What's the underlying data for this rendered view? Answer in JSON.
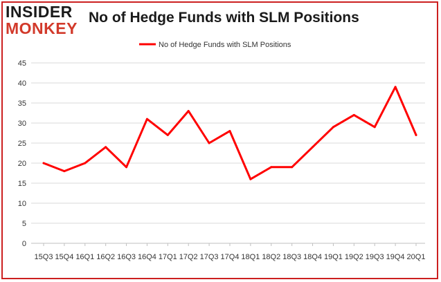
{
  "logo": {
    "line1": "INSIDER",
    "line2": "MONKEY"
  },
  "chart_data": {
    "type": "line",
    "title": "No of Hedge Funds with SLM Positions",
    "xlabel": "",
    "ylabel": "",
    "ylim": [
      0,
      45
    ],
    "yticks": [
      0,
      5,
      10,
      15,
      20,
      25,
      30,
      35,
      40,
      45
    ],
    "grid": true,
    "legend_position": "top",
    "categories": [
      "15Q3",
      "15Q4",
      "16Q1",
      "16Q2",
      "16Q3",
      "16Q4",
      "17Q1",
      "17Q2",
      "17Q3",
      "17Q4",
      "18Q1",
      "18Q2",
      "18Q3",
      "18Q4",
      "19Q1",
      "19Q2",
      "19Q3",
      "19Q4",
      "20Q1"
    ],
    "series": [
      {
        "name": "No of Hedge Funds with SLM Positions",
        "color": "#ff0000",
        "values": [
          20,
          18,
          20,
          24,
          19,
          31,
          27,
          33,
          25,
          28,
          16,
          19,
          19,
          24,
          29,
          32,
          29,
          39,
          27
        ]
      }
    ]
  }
}
